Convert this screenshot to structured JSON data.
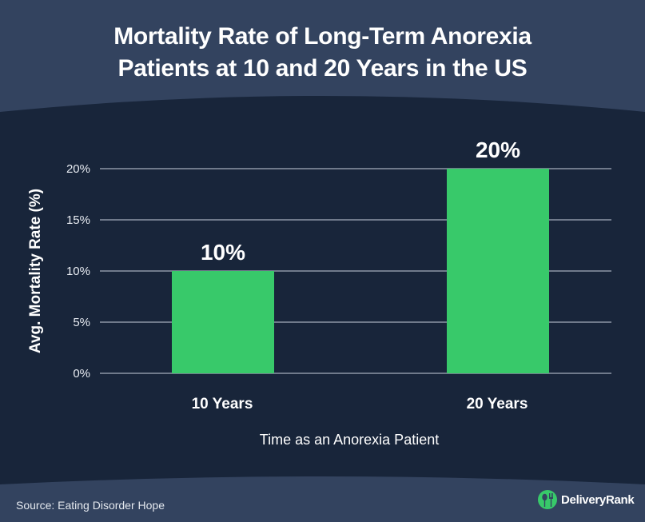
{
  "title": {
    "line1": "Mortality Rate of Long-Term Anorexia",
    "line2": "Patients at 10 and 20 Years in the US"
  },
  "colors": {
    "header_bg": "#33435f",
    "panel_bg": "#18253a",
    "bar": "#38c96a",
    "grid": "#c8d0dc",
    "text": "#ffffff",
    "logo": "#38c96a"
  },
  "chart_data": {
    "type": "bar",
    "title": "Mortality Rate of Long-Term Anorexia Patients at 10 and 20 Years in the US",
    "categories": [
      "10 Years",
      "20 Years"
    ],
    "values": [
      10,
      20
    ],
    "value_labels": [
      "10%",
      "20%"
    ],
    "xlabel": "Time as an Anorexia Patient",
    "ylabel": "Avg. Mortality Rate (%)",
    "ylim": [
      0,
      20
    ],
    "yticks": [
      0,
      5,
      10,
      15,
      20
    ],
    "ytick_labels": [
      "0%",
      "5%",
      "10%",
      "15%",
      "20%"
    ],
    "grid": true,
    "legend": "none"
  },
  "footer": {
    "source": "Source: Eating Disorder Hope",
    "logo_icon": "fork-spoon-icon",
    "brand": "DeliveryRank"
  }
}
